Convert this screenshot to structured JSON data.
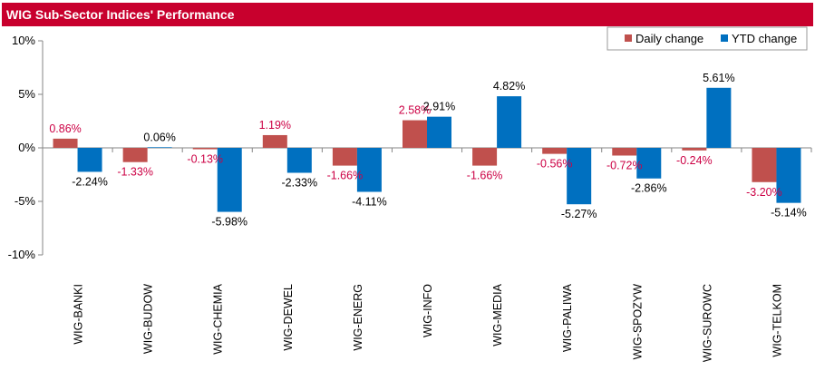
{
  "title": "WIG Sub-Sector Indices' Performance",
  "chart_data": {
    "type": "bar",
    "title": "WIG Sub-Sector Indices' Performance",
    "categories": [
      "WIG-BANKI",
      "WIG-BUDOW",
      "WIG-CHEMIA",
      "WIG-DEWEL",
      "WIG-ENERG",
      "WIG-INFO",
      "WIG-MEDIA",
      "WIG-PALIWA",
      "WIG-SPOZYW",
      "WIG-SUROWC",
      "WIG-TELKOM"
    ],
    "series": [
      {
        "name": "Daily change",
        "color": "#c0504d",
        "label_color": "#cc0044",
        "values": [
          0.86,
          -1.33,
          -0.13,
          1.19,
          -1.66,
          2.58,
          -1.66,
          -0.56,
          -0.72,
          -0.24,
          -3.2
        ],
        "labels": [
          "0.86%",
          "-1.33%",
          "-0.13%",
          "1.19%",
          "-1.66%",
          "2.58%",
          "-1.66%",
          "-0.56%",
          "-0.72%",
          "-0.24%",
          "-3.20%"
        ]
      },
      {
        "name": "YTD change",
        "color": "#0070c0",
        "label_color": "#000000",
        "values": [
          -2.24,
          0.06,
          -5.98,
          -2.33,
          -4.11,
          2.91,
          4.82,
          -5.27,
          -2.86,
          5.61,
          -5.14
        ],
        "labels": [
          "-2.24%",
          "0.06%",
          "-5.98%",
          "-2.33%",
          "-4.11%",
          "2.91%",
          "4.82%",
          "-5.27%",
          "-2.86%",
          "5.61%",
          "-5.14%"
        ]
      }
    ],
    "ylim": [
      -10,
      10
    ],
    "yticks": [
      10,
      5,
      0,
      -5,
      -10
    ],
    "ytick_labels": [
      "10%",
      "5%",
      "0%",
      "-5%",
      "-10%"
    ],
    "xlabel": "",
    "ylabel": "",
    "grid": false,
    "legend_position": "top-right"
  }
}
